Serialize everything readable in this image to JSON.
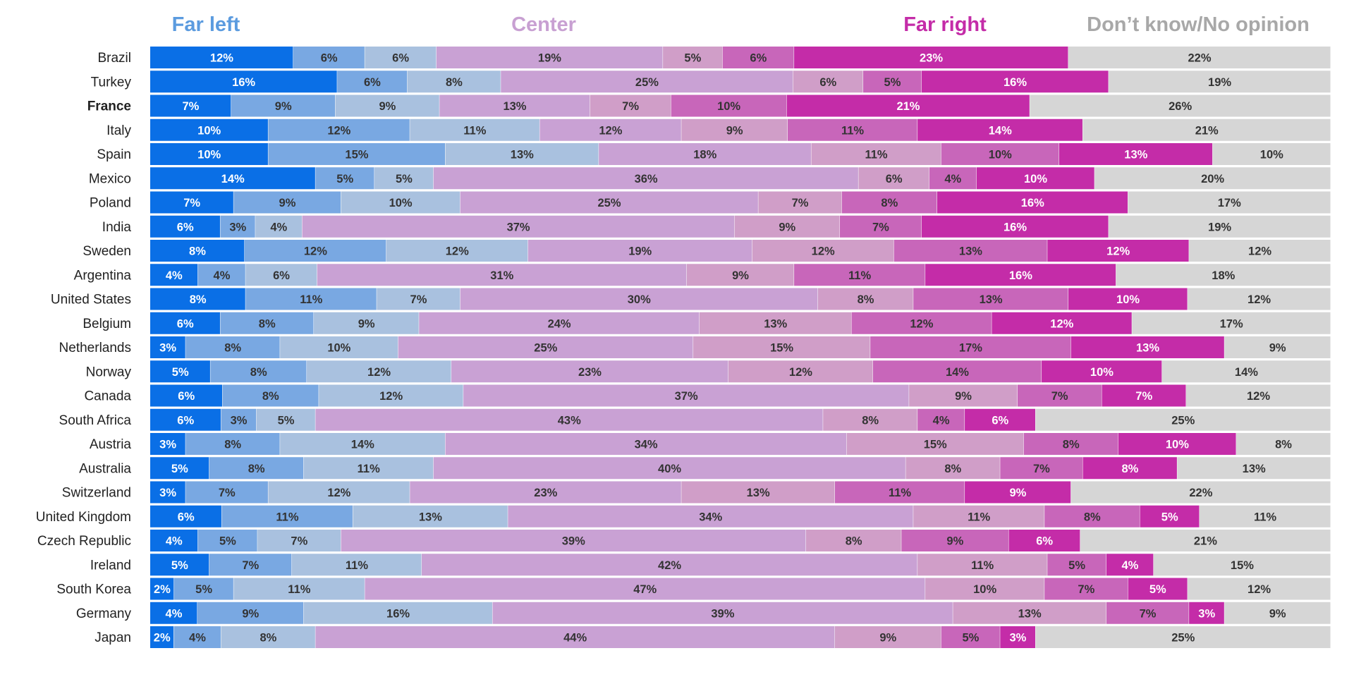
{
  "chart_data": {
    "type": "bar",
    "orientation": "horizontal",
    "stacked": true,
    "normalized": true,
    "unit": "%",
    "title": "",
    "xlabel": "",
    "ylabel": "",
    "xlim": [
      0,
      100
    ],
    "grid": false,
    "legend_position": "top",
    "legend_groups": [
      {
        "label": "Far left",
        "color": "#5b9bdf"
      },
      {
        "label": "Center",
        "color": "#c8a0d2"
      },
      {
        "label": "Far right",
        "color": "#c42ca8"
      },
      {
        "label": "Don’t know/No opinion",
        "color": "#a8a8a8"
      }
    ],
    "highlighted_category": "France",
    "categories": [
      "Brazil",
      "Turkey",
      "France",
      "Italy",
      "Spain",
      "Mexico",
      "Poland",
      "India",
      "Sweden",
      "Argentina",
      "United States",
      "Belgium",
      "Netherlands",
      "Norway",
      "Canada",
      "South Africa",
      "Austria",
      "Australia",
      "Switzerland",
      "United Kingdom",
      "Czech Republic",
      "Ireland",
      "South Korea",
      "Germany",
      "Japan"
    ],
    "series": [
      {
        "color": "#0a6fe6",
        "label_color": "#ffffff",
        "values": [
          12,
          16,
          7,
          10,
          10,
          14,
          7,
          6,
          8,
          4,
          8,
          6,
          3,
          5,
          6,
          6,
          3,
          5,
          3,
          6,
          4,
          5,
          2,
          4,
          2
        ]
      },
      {
        "color": "#79a8e2",
        "label_color": "#333333",
        "values": [
          6,
          6,
          9,
          12,
          15,
          5,
          9,
          3,
          12,
          4,
          11,
          8,
          8,
          8,
          8,
          3,
          8,
          8,
          7,
          11,
          5,
          7,
          5,
          9,
          4
        ]
      },
      {
        "color": "#a9c1df",
        "label_color": "#333333",
        "values": [
          6,
          8,
          9,
          11,
          13,
          5,
          10,
          4,
          12,
          6,
          7,
          9,
          10,
          12,
          12,
          5,
          14,
          11,
          12,
          13,
          7,
          11,
          11,
          16,
          8
        ]
      },
      {
        "color": "#c9a1d4",
        "label_color": "#333333",
        "values": [
          19,
          25,
          13,
          12,
          18,
          36,
          25,
          37,
          19,
          31,
          30,
          24,
          25,
          23,
          37,
          43,
          34,
          40,
          23,
          34,
          39,
          42,
          47,
          39,
          44
        ]
      },
      {
        "color": "#d09ec8",
        "label_color": "#333333",
        "values": [
          5,
          6,
          7,
          9,
          11,
          6,
          7,
          9,
          12,
          9,
          8,
          13,
          15,
          12,
          9,
          8,
          15,
          8,
          13,
          11,
          8,
          11,
          10,
          13,
          9
        ]
      },
      {
        "color": "#c866ba",
        "label_color": "#333333",
        "values": [
          6,
          5,
          10,
          11,
          10,
          4,
          8,
          7,
          13,
          11,
          13,
          12,
          17,
          14,
          7,
          4,
          8,
          7,
          11,
          8,
          9,
          5,
          7,
          7,
          5
        ]
      },
      {
        "color": "#c42ca8",
        "label_color": "#ffffff",
        "values": [
          23,
          16,
          21,
          14,
          13,
          10,
          16,
          16,
          12,
          16,
          10,
          12,
          13,
          10,
          7,
          6,
          10,
          8,
          9,
          5,
          6,
          4,
          5,
          3,
          3
        ]
      },
      {
        "color": "#d6d6d6",
        "label_color": "#333333",
        "values": [
          22,
          19,
          26,
          21,
          10,
          20,
          17,
          19,
          12,
          18,
          12,
          17,
          9,
          14,
          12,
          25,
          8,
          13,
          22,
          11,
          21,
          15,
          12,
          9,
          25
        ]
      }
    ]
  }
}
